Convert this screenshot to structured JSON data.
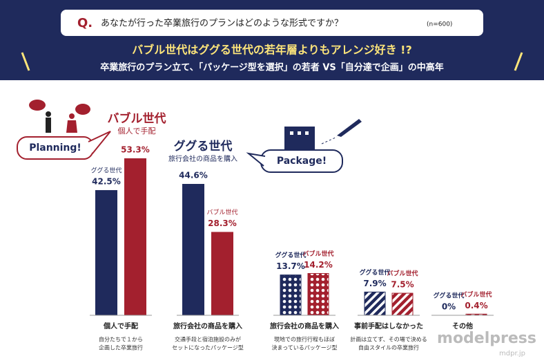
{
  "header": {
    "q_mark": "Q.",
    "question": "あなたが行った卒業旅行のプランはどのような形式ですか？",
    "sample": "(n=600)",
    "title": "バブル世代はググる世代の若年層よりもアレンジ好き !?",
    "subtitle": "卒業旅行のプラン立て、「パッケージ型を選択」の若者 VS「自分達で企画」の中高年"
  },
  "callouts": [
    {
      "bubble": "Planning!",
      "group": "バブル世代",
      "text": "個人で手配"
    },
    {
      "bubble": "Package!",
      "group": "ググる世代",
      "text": "旅行会社の商品を購入"
    }
  ],
  "chart_data": {
    "type": "bar",
    "categories": [
      "個人で手配",
      "旅行会社の商品を購入",
      "旅行会社の商品を購入",
      "事前手配はしなかった",
      "その他"
    ],
    "category_notes": [
      [
        "自分たちで１から",
        "企画した卒業旅行"
      ],
      [
        "交通手段と宿泊施設のみが",
        "セットになったパッケージ型"
      ],
      [
        "現地での旅行行程もほぼ",
        "決まっているパッケージ型"
      ],
      [
        "計画は立てず、その場で決める",
        "自由スタイルの卒業旅行"
      ],
      []
    ],
    "patterns": [
      "solid",
      "solid",
      "dots",
      "stripes",
      "stripes"
    ],
    "series": [
      {
        "name": "ググる世代",
        "color": "#1f2a5c",
        "values": [
          42.5,
          44.6,
          13.7,
          7.9,
          0
        ],
        "value_labels": [
          "42.5%",
          "44.6%",
          "13.7%",
          "7.9%",
          "0%"
        ]
      },
      {
        "name": "バブル世代",
        "color": "#a3202e",
        "values": [
          53.3,
          28.3,
          14.2,
          7.5,
          0.4
        ],
        "value_labels": [
          "53.3%",
          "28.3%",
          "14.2%",
          "7.5%",
          "0.4%"
        ]
      }
    ]
  },
  "watermark": {
    "brand": "modelpress",
    "url": "mdpr.jp"
  }
}
